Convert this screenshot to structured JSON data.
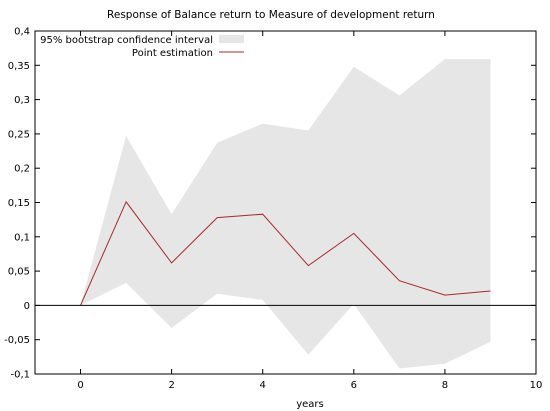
{
  "chart_data": {
    "type": "line",
    "title": "Response of Balance return to Measure of development return",
    "xlabel": "years",
    "ylabel": "",
    "xlim": [
      -1,
      10
    ],
    "ylim": [
      -0.1,
      0.4
    ],
    "x_ticks": [
      0,
      2,
      4,
      6,
      8,
      10
    ],
    "x_tick_labels": [
      "0",
      "2",
      "4",
      "6",
      "8",
      "10"
    ],
    "y_ticks": [
      -0.1,
      -0.05,
      0,
      0.05,
      0.1,
      0.15,
      0.2,
      0.25,
      0.3,
      0.35,
      0.4
    ],
    "y_tick_labels": [
      "-0,1",
      "-0,05",
      "0",
      "0,05",
      "0,1",
      "0,15",
      "0,2",
      "0,25",
      "0,3",
      "0,35",
      "0,4"
    ],
    "zero_line": true,
    "grid": false,
    "legend_position": "top-left",
    "x": [
      0,
      1,
      2,
      3,
      4,
      5,
      6,
      7,
      8,
      9
    ],
    "series": [
      {
        "name": "95% bootstrap confidence interval",
        "kind": "band",
        "color": "#e6e6e6",
        "lower": [
          0,
          0.033,
          -0.033,
          0.017,
          0.008,
          -0.072,
          0.002,
          -0.092,
          -0.085,
          -0.053
        ],
        "upper": [
          0,
          0.247,
          0.133,
          0.237,
          0.265,
          0.255,
          0.348,
          0.306,
          0.359,
          0.359
        ]
      },
      {
        "name": "Point estimation",
        "kind": "line",
        "color": "#a52a2a",
        "values": [
          0,
          0.151,
          0.062,
          0.128,
          0.133,
          0.058,
          0.105,
          0.036,
          0.015,
          0.021
        ]
      }
    ]
  }
}
